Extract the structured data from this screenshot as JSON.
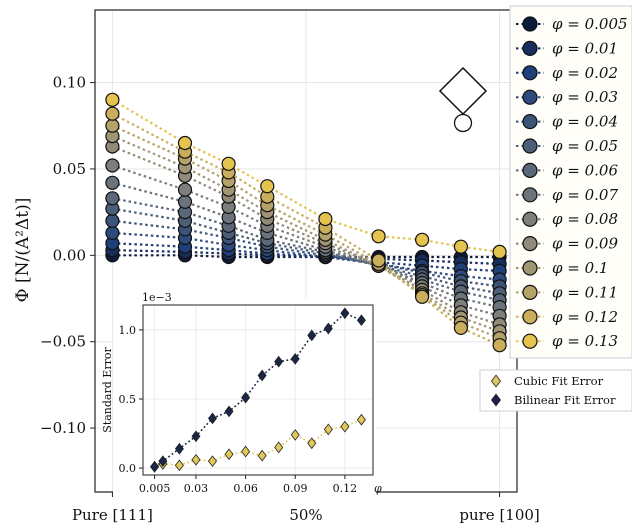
{
  "chart_data": [
    {
      "type": "scatter",
      "ylabel": "Φ [N/(A²Δt)]",
      "xlabel": "",
      "x_tick_labels": [
        "Pure [111]",
        "50%",
        "pure [100]"
      ],
      "y_tick_labels": [
        "−0.10",
        "−0.05",
        "0.00",
        "0.05",
        "0.10"
      ],
      "y_ticks": [
        -0.1,
        -0.05,
        0.0,
        0.05,
        0.1
      ],
      "xlim": [
        -0.045,
        1.045
      ],
      "ylim": [
        -0.137,
        0.142
      ],
      "grid": true,
      "legend_position": "outside-right",
      "legend_symbol": "φ",
      "x_fraction": [
        0.0,
        0.1875,
        0.3,
        0.4,
        0.55,
        0.6875,
        0.8,
        0.9,
        1.0
      ],
      "series": [
        {
          "name": "φ = 0.005",
          "color": "#0d1b3a",
          "y": [
            0.0,
            0.0,
            -0.001,
            -0.001,
            -0.001,
            -0.001,
            -0.001,
            -0.001,
            -0.001
          ]
        },
        {
          "name": "φ = 0.01",
          "color": "#172e5c",
          "y": [
            0.003,
            0.002,
            0.001,
            0.0,
            -0.001,
            -0.002,
            -0.003,
            -0.004,
            -0.005
          ]
        },
        {
          "name": "φ = 0.02",
          "color": "#1f3f7a",
          "y": [
            0.007,
            0.005,
            0.003,
            0.001,
            -0.001,
            -0.004,
            -0.006,
            -0.008,
            -0.009
          ]
        },
        {
          "name": "φ = 0.03",
          "color": "#2c4b7c",
          "y": [
            0.013,
            0.01,
            0.006,
            0.003,
            -0.001,
            -0.005,
            -0.009,
            -0.012,
            -0.014
          ]
        },
        {
          "name": "φ = 0.04",
          "color": "#3c5478",
          "y": [
            0.02,
            0.015,
            0.01,
            0.005,
            0.0,
            -0.005,
            -0.01,
            -0.015,
            -0.018
          ]
        },
        {
          "name": "φ = 0.05",
          "color": "#4b5f78",
          "y": [
            0.027,
            0.02,
            0.013,
            0.007,
            0.001,
            -0.006,
            -0.012,
            -0.018,
            -0.022
          ]
        },
        {
          "name": "φ = 0.06",
          "color": "#5b6879",
          "y": [
            0.033,
            0.025,
            0.017,
            0.009,
            0.002,
            -0.006,
            -0.014,
            -0.021,
            -0.026
          ]
        },
        {
          "name": "φ = 0.07",
          "color": "#6b737b",
          "y": [
            0.042,
            0.031,
            0.022,
            0.013,
            0.003,
            -0.006,
            -0.016,
            -0.025,
            -0.03
          ]
        },
        {
          "name": "φ = 0.08",
          "color": "#7c7f7c",
          "y": [
            0.052,
            0.038,
            0.028,
            0.017,
            0.005,
            -0.006,
            -0.018,
            -0.029,
            -0.035
          ]
        },
        {
          "name": "φ = 0.09",
          "color": "#8f8b78",
          "y": [
            0.063,
            0.046,
            0.034,
            0.021,
            0.007,
            -0.006,
            -0.02,
            -0.033,
            -0.04
          ]
        },
        {
          "name": "φ = 0.1",
          "color": "#a19673",
          "y": [
            0.069,
            0.051,
            0.038,
            0.025,
            0.009,
            -0.006,
            -0.022,
            -0.036,
            -0.044
          ]
        },
        {
          "name": "φ = 0.11",
          "color": "#b5a268",
          "y": [
            0.075,
            0.056,
            0.043,
            0.029,
            0.012,
            -0.005,
            -0.023,
            -0.039,
            -0.048
          ]
        },
        {
          "name": "φ = 0.12",
          "color": "#caae5c",
          "y": [
            0.082,
            0.06,
            0.048,
            0.034,
            0.016,
            -0.003,
            -0.024,
            -0.042,
            -0.052
          ]
        },
        {
          "name": "φ = 0.13",
          "color": "#e4c44f",
          "y": [
            0.09,
            0.065,
            0.053,
            0.04,
            0.021,
            0.011,
            0.009,
            0.005,
            0.002
          ]
        }
      ]
    },
    {
      "type": "line",
      "ylabel": "Standard Error",
      "xlabel": "φ",
      "offset_label": "1e−3",
      "x_tick_labels": [
        "0.005",
        "0.03",
        "0.06",
        "0.09",
        "0.12"
      ],
      "x_ticks": [
        0.005,
        0.03,
        0.06,
        0.09,
        0.12
      ],
      "y_tick_labels": [
        "0.0",
        "0.5",
        "1.0"
      ],
      "y_ticks": [
        0.0,
        0.5,
        1.0
      ],
      "xlim": [
        -0.002,
        0.137
      ],
      "ylim": [
        -0.05,
        1.18
      ],
      "legend_position": "outside-right",
      "x": [
        0.005,
        0.01,
        0.02,
        0.03,
        0.04,
        0.05,
        0.06,
        0.07,
        0.08,
        0.09,
        0.1,
        0.11,
        0.12,
        0.13
      ],
      "series": [
        {
          "name": "Cubic Fit Error",
          "color": "#e0c95a",
          "marker": "diamond",
          "values": [
            0.01,
            0.03,
            0.02,
            0.06,
            0.05,
            0.1,
            0.12,
            0.09,
            0.15,
            0.24,
            0.18,
            0.28,
            0.3,
            0.35
          ]
        },
        {
          "name": "Bilinear Fit Error",
          "color": "#1a2645",
          "marker": "diamond",
          "values": [
            0.01,
            0.05,
            0.14,
            0.23,
            0.36,
            0.41,
            0.51,
            0.67,
            0.77,
            0.79,
            0.96,
            1.01,
            1.12,
            1.07
          ]
        }
      ]
    }
  ]
}
